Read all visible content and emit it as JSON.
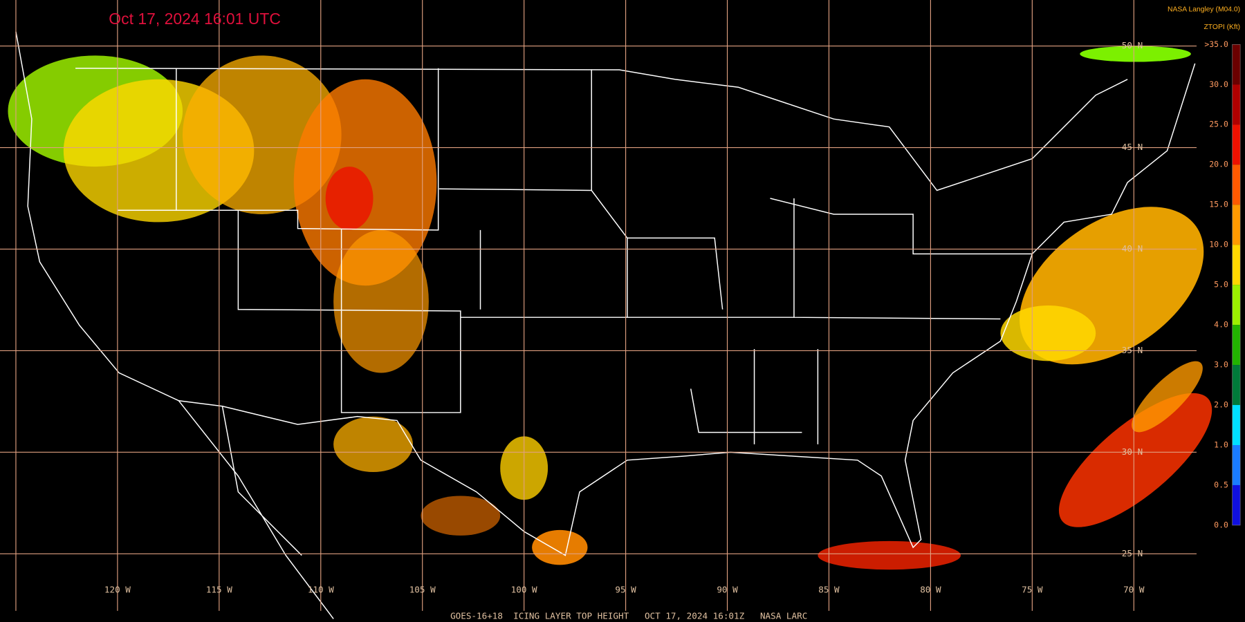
{
  "header": {
    "timestamp": "Oct 17, 2024 16:01 UTC",
    "credit": "NASA Langley (M04.0)"
  },
  "legend": {
    "title": "ZTOPI (Kft)",
    "levels": [
      ">35.0",
      "30.0",
      "25.0",
      "20.0",
      "15.0",
      "10.0",
      "5.0",
      "4.0",
      "3.0",
      "2.0",
      "1.0",
      "0.5",
      "0.0"
    ],
    "colors": [
      "#6b0000",
      "#b00000",
      "#ee1100",
      "#ff5a00",
      "#ff9a00",
      "#ffd800",
      "#9cf000",
      "#22b400",
      "#007a3a",
      "#00e0ff",
      "#1a7cff",
      "#1010e0",
      "#9a55ff"
    ]
  },
  "grid": {
    "longitudes": [
      "120 W",
      "115 W",
      "110 W",
      "105 W",
      "100 W",
      "95 W",
      "90 W",
      "85 W",
      "80 W",
      "75 W",
      "70 W"
    ],
    "latitudes": [
      "50 N",
      "45 N",
      "40 N",
      "35 N",
      "30 N",
      "25 N"
    ]
  },
  "footer": "GOES-16+18  ICING LAYER TOP HEIGHT   OCT 17, 2024 16:01Z   NASA LARC"
}
